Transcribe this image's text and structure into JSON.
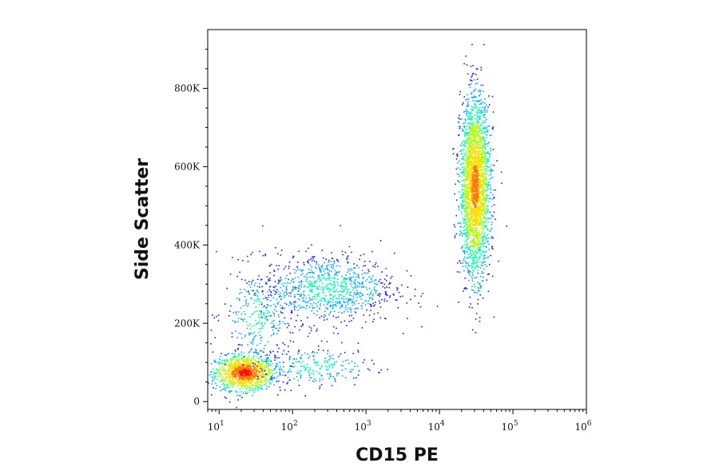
{
  "chart_data": {
    "type": "scatter",
    "title": "",
    "xlabel": "CD15 PE",
    "ylabel": "Side Scatter",
    "x_scale": "log",
    "xlim": [
      7,
      1000000
    ],
    "ylim": [
      -20000,
      950000
    ],
    "grid": false,
    "legend": "none",
    "x_ticks": [
      {
        "value": 10,
        "base": "10",
        "exp": "1"
      },
      {
        "value": 100,
        "base": "10",
        "exp": "2"
      },
      {
        "value": 1000,
        "base": "10",
        "exp": "3"
      },
      {
        "value": 10000,
        "base": "10",
        "exp": "4"
      },
      {
        "value": 100000,
        "base": "10",
        "exp": "5"
      },
      {
        "value": 1000000,
        "base": "10",
        "exp": "6"
      }
    ],
    "y_ticks": [
      {
        "value": 0,
        "label": "0"
      },
      {
        "value": 200000,
        "label": "200K"
      },
      {
        "value": 400000,
        "label": "400K"
      },
      {
        "value": 600000,
        "label": "600K"
      },
      {
        "value": 800000,
        "label": "800K"
      }
    ],
    "populations": [
      {
        "cx": 22,
        "cy": 75000,
        "sdx_log": 0.2,
        "sdy": 22000,
        "count": 1200,
        "peak_color": "#ff2200"
      },
      {
        "cx": 35,
        "cy": 220000,
        "sdx_log": 0.25,
        "sdy": 60000,
        "count": 300,
        "peak_color": "#3333cc"
      },
      {
        "cx": 300,
        "cy": 290000,
        "sdx_log": 0.45,
        "sdy": 45000,
        "count": 900,
        "peak_color": "#33aaff"
      },
      {
        "cx": 30000,
        "cy": 550000,
        "sdx_log": 0.1,
        "sdy": 110000,
        "count": 2600,
        "peak_color": "#ffee00"
      },
      {
        "cx": 200,
        "cy": 90000,
        "sdx_log": 0.4,
        "sdy": 25000,
        "count": 250,
        "peak_color": "#3333cc"
      }
    ],
    "colorscale": [
      "#1a1aff",
      "#00aaff",
      "#00ffaa",
      "#aaff00",
      "#ffdd00",
      "#ff7700",
      "#ff1100"
    ]
  }
}
